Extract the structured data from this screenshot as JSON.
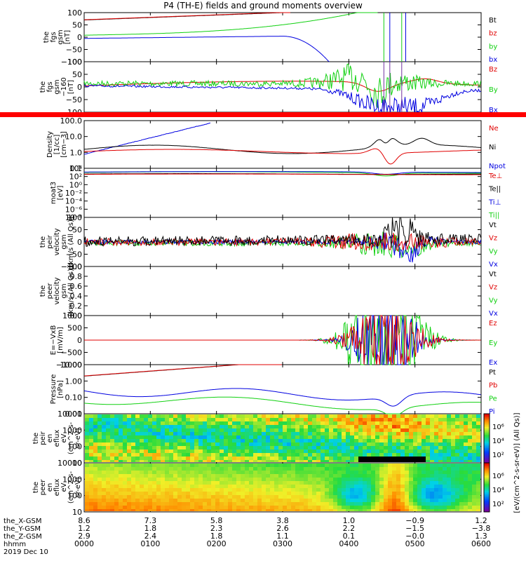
{
  "title": "P4 (TH-E) fields and ground moments overview",
  "colors": {
    "black": "#000000",
    "red": "#e00000",
    "green": "#10d010",
    "blue": "#0000e0"
  },
  "chart_data": [
    {
      "type": "line",
      "ylabel": [
        "the",
        "fgs",
        "gsm",
        "[nT]"
      ],
      "yticks": [
        "100",
        "50",
        "0",
        "−50",
        "−100"
      ],
      "ylim": [
        -100,
        100
      ],
      "series": [
        {
          "name": "Bt",
          "color": "#000000"
        },
        {
          "name": "bz",
          "color": "#e00000"
        },
        {
          "name": "by",
          "color": "#10d010"
        },
        {
          "name": "bx",
          "color": "#0000e0"
        }
      ]
    },
    {
      "type": "line",
      "ylabel": [
        "the",
        "fgs",
        "gsm",
        "−160",
        "[nT]"
      ],
      "yticks": [
        "100",
        "50",
        "0",
        "−50",
        "−100"
      ],
      "ylim": [
        -120,
        100
      ],
      "series": [
        {
          "name": "Bz",
          "color": "#e00000"
        },
        {
          "name": "By",
          "color": "#10d010"
        },
        {
          "name": "Bx",
          "color": "#0000e0"
        }
      ]
    },
    {
      "type": "line",
      "ylabel": [
        "Density",
        "[1/cc]",
        "[cm−3]"
      ],
      "yticks": [
        "100.0",
        "10.0",
        "1.0",
        "0.1"
      ],
      "log": true,
      "series": [
        {
          "name": "Ne",
          "color": "#e00000"
        },
        {
          "name": "Ni",
          "color": "#000000"
        },
        {
          "name": "Npot",
          "color": "#0000e0"
        }
      ]
    },
    {
      "type": "line",
      "ylabel": [
        "moat3",
        "[eV]"
      ],
      "yticks": [
        "10⁴",
        "10²",
        "10⁰",
        "10⁻²",
        "10⁻⁴",
        "10⁻⁶",
        "10⁻⁸"
      ],
      "log": true,
      "series": [
        {
          "name": "Te⊥",
          "color": "#e00000"
        },
        {
          "name": "Te||",
          "color": "#000000"
        },
        {
          "name": "Ti⊥",
          "color": "#0000e0"
        },
        {
          "name": "Ti||",
          "color": "#10d010"
        }
      ]
    },
    {
      "type": "line",
      "ylabel": [
        "the",
        "peir",
        "velocity",
        "gsm",
        "[km/s (All Qs)]"
      ],
      "yticks": [
        "100",
        "50",
        "0",
        "−50",
        "−100"
      ],
      "ylim": [
        -100,
        100
      ],
      "series": [
        {
          "name": "Vt",
          "color": "#000000"
        },
        {
          "name": "Vz",
          "color": "#e00000"
        },
        {
          "name": "Vy",
          "color": "#10d010"
        },
        {
          "name": "Vx",
          "color": "#0000e0"
        }
      ]
    },
    {
      "type": "line",
      "ylabel": [
        "the",
        "peer",
        "velocity",
        "gsm",
        "[km/s (All Qs)]"
      ],
      "yticks": [
        "1.0",
        "0.8",
        "0.6",
        "0.4",
        "0.2",
        "0.0"
      ],
      "ylim": [
        0,
        1
      ],
      "series": [
        {
          "name": "Vt",
          "color": "#000000"
        },
        {
          "name": "Vz",
          "color": "#e00000"
        },
        {
          "name": "Vy",
          "color": "#10d010"
        },
        {
          "name": "Vx",
          "color": "#0000e0"
        }
      ]
    },
    {
      "type": "line",
      "ylabel": [
        "E=−VxB",
        "[mV/m]"
      ],
      "yticks": [
        "1000",
        "500",
        "0",
        "−500",
        "−1000"
      ],
      "ylim": [
        -1000,
        1000
      ],
      "series": [
        {
          "name": "Ez",
          "color": "#e00000"
        },
        {
          "name": "Ey",
          "color": "#10d010"
        },
        {
          "name": "Ex",
          "color": "#0000e0"
        }
      ]
    },
    {
      "type": "line",
      "ylabel": [
        "Pressure",
        "[nPa]"
      ],
      "yticks": [
        "10.00",
        "1.00",
        "0.10",
        "0.01"
      ],
      "log": true,
      "series": [
        {
          "name": "Pt",
          "color": "#000000"
        },
        {
          "name": "Pb",
          "color": "#e00000"
        },
        {
          "name": "Pe",
          "color": "#10d010"
        },
        {
          "name": "Pi",
          "color": "#0000e0"
        }
      ]
    },
    {
      "type": "heatmap",
      "ylabel": [
        "the",
        "peir",
        "en",
        "eflux",
        "eV",
        "(cm^2-s-",
        "sr-eV)"
      ],
      "yticks": [
        "10000",
        "1000",
        "100",
        "10"
      ],
      "log": true
    },
    {
      "type": "heatmap",
      "ylabel": [
        "the",
        "peer",
        "en",
        "eflux",
        "eV",
        "(cm^2-s-",
        "sr-eV)"
      ],
      "yticks": [
        "10000",
        "1000",
        "100",
        "10"
      ],
      "log": true
    }
  ],
  "colorbar": {
    "label": "[eV/(cm^2-s-sr-eV)] (All Qs)]",
    "ticks_top": [
      "10⁶",
      "10⁴",
      "10²"
    ],
    "ticks_bottom": [
      "10⁶",
      "10⁴",
      "10²"
    ]
  },
  "xaxis": {
    "row_labels": [
      "the_X-GSM",
      "the_Y-GSM",
      "the_Z-GSM",
      "hhmm",
      "2019 Dec 10"
    ],
    "ticks": [
      {
        "x": "8.6",
        "y": "1.2",
        "z": "2.9",
        "t": "0000"
      },
      {
        "x": "7.3",
        "y": "1.8",
        "z": "2.4",
        "t": "0100"
      },
      {
        "x": "5.8",
        "y": "2.3",
        "z": "1.8",
        "t": "0200"
      },
      {
        "x": "3.8",
        "y": "2.6",
        "z": "1.1",
        "t": "0300"
      },
      {
        "x": "1.0",
        "y": "2.2",
        "z": "0.1",
        "t": "0400"
      },
      {
        "x": "−0.9",
        "y": "−1.5",
        "z": "−0.0",
        "t": "0500"
      },
      {
        "x": "1.2",
        "y": "−3.8",
        "z": "1.3",
        "t": "0600"
      }
    ]
  }
}
